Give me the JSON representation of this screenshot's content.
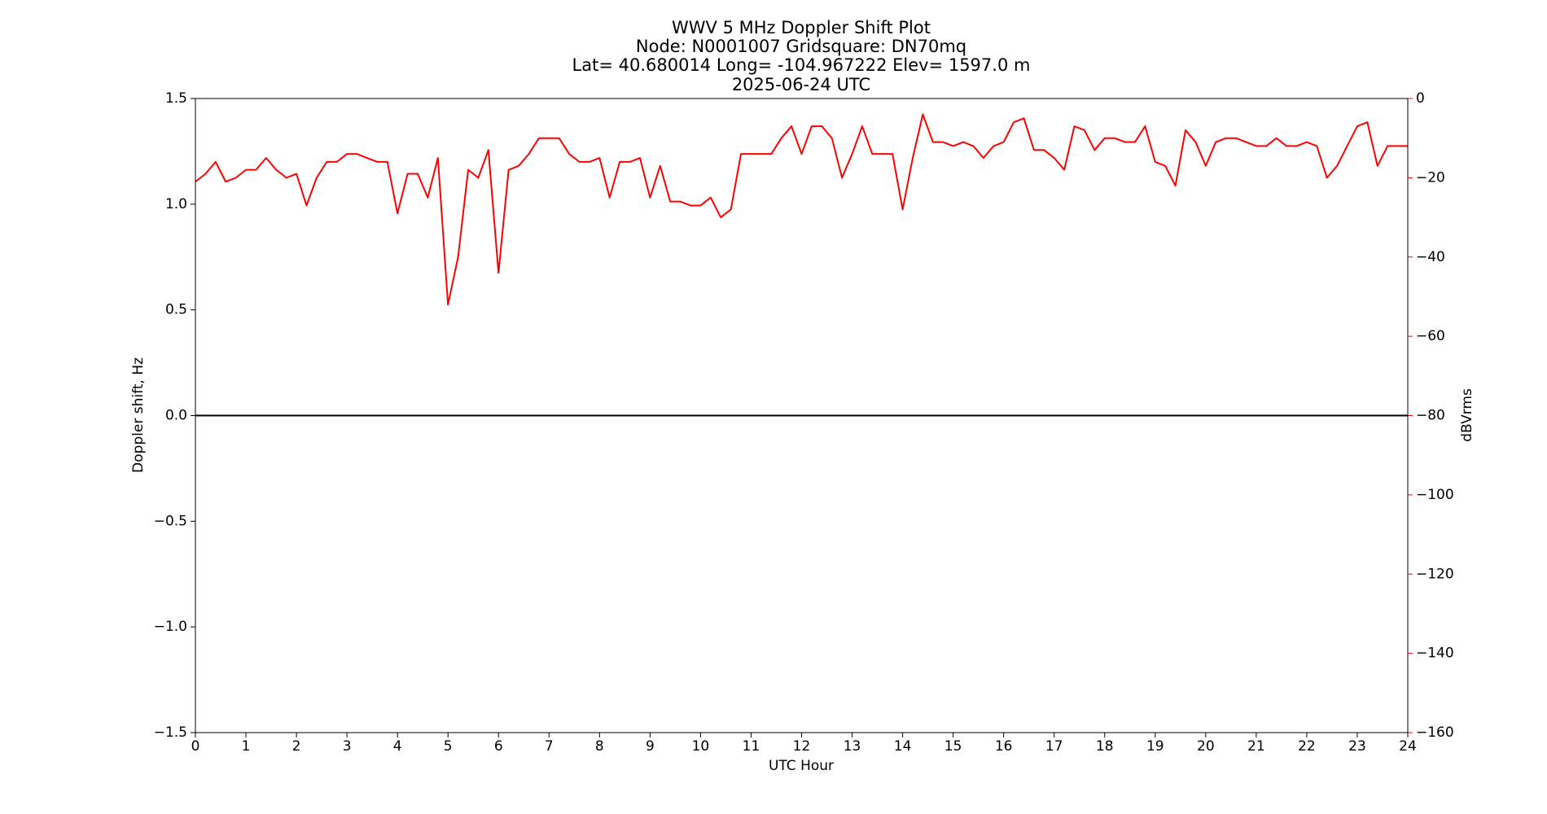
{
  "chart_data": {
    "type": "line",
    "title": [
      "WWV 5 MHz Doppler Shift Plot",
      "Node:  N0001007     Gridsquare:  DN70mq",
      "Lat= 40.680014    Long= -104.967222    Elev= 1597.0 m",
      "2025-06-24  UTC"
    ],
    "xlabel": "UTC Hour",
    "ylabel": "Doppler shift, Hz",
    "y2label": "dBVrms",
    "xlim": [
      0,
      24
    ],
    "xticks": [
      0,
      1,
      2,
      3,
      4,
      5,
      6,
      7,
      8,
      9,
      10,
      11,
      12,
      13,
      14,
      15,
      16,
      17,
      18,
      19,
      20,
      21,
      22,
      23,
      24
    ],
    "ylim": [
      -1.5,
      1.5
    ],
    "yticks": [
      {
        "value": -1.5,
        "label": "−1.5"
      },
      {
        "value": -1.0,
        "label": "−1.0"
      },
      {
        "value": -0.5,
        "label": "−0.5"
      },
      {
        "value": 0.0,
        "label": "0.0"
      },
      0.5,
      {
        "value": 1.0,
        "label": "1.0"
      },
      1.5
    ],
    "y2lim": [
      -160,
      0
    ],
    "y2ticks": [
      {
        "value": -160,
        "label": "−160"
      },
      {
        "value": -140,
        "label": "−140"
      },
      {
        "value": -120,
        "label": "−120"
      },
      {
        "value": -100,
        "label": "−100"
      },
      {
        "value": -80,
        "label": "−80"
      },
      {
        "value": -60,
        "label": "−60"
      },
      {
        "value": -40,
        "label": "−40"
      },
      {
        "value": -20,
        "label": "−20"
      },
      0
    ],
    "y2color": "#ff0000",
    "x": [
      0,
      0.2,
      0.4,
      0.6,
      0.8,
      1,
      1.2,
      1.4,
      1.6,
      1.8,
      2,
      2.2,
      2.4,
      2.6,
      2.8,
      3,
      3.2,
      3.4,
      3.6,
      3.8,
      4,
      4.2,
      4.4,
      4.6,
      4.8,
      5,
      5.2,
      5.4,
      5.6,
      5.8,
      6,
      6.2,
      6.4,
      6.6,
      6.8,
      7,
      7.2,
      7.4,
      7.6,
      7.8,
      8,
      8.2,
      8.4,
      8.6,
      8.8,
      9,
      9.2,
      9.4,
      9.6,
      9.8,
      10,
      10.2,
      10.4,
      10.6,
      10.8,
      11,
      11.2,
      11.4,
      11.6,
      11.8,
      12,
      12.2,
      12.4,
      12.6,
      12.8,
      13,
      13.2,
      13.4,
      13.6,
      13.8,
      14,
      14.2,
      14.4,
      14.6,
      14.8,
      15,
      15.2,
      15.4,
      15.6,
      15.8,
      16,
      16.2,
      16.4,
      16.6,
      16.8,
      17,
      17.2,
      17.4,
      17.6,
      17.8,
      18,
      18.2,
      18.4,
      18.6,
      18.8,
      19,
      19.2,
      19.4,
      19.6,
      19.8,
      20,
      20.2,
      20.4,
      20.6,
      20.8,
      21,
      21.2,
      21.4,
      21.6,
      21.8,
      22,
      22.2,
      22.4,
      22.6,
      22.8,
      23,
      23.2,
      23.4,
      23.6,
      23.8,
      24
    ],
    "series": [
      {
        "color": "#000000",
        "values": [
          0,
          0,
          0,
          0,
          0,
          0,
          0,
          0,
          0,
          0,
          0,
          0,
          0,
          0,
          0,
          0,
          0,
          0,
          0,
          0,
          0,
          0,
          0,
          0,
          0,
          0,
          0,
          0,
          0,
          0,
          0,
          0,
          0,
          0,
          0,
          0,
          0,
          0,
          0,
          0,
          0,
          0,
          0,
          0,
          0,
          0,
          0,
          0,
          0,
          0,
          0,
          0,
          0,
          0,
          0,
          0,
          0,
          0,
          0,
          0,
          0,
          0,
          0,
          0,
          0,
          0,
          0,
          0,
          0,
          0,
          0,
          0,
          0,
          0,
          0,
          0,
          0,
          0,
          0,
          0,
          0,
          0,
          0,
          0,
          0,
          0,
          0,
          0,
          0,
          0,
          0,
          0,
          0,
          0,
          0,
          0,
          0,
          0,
          0,
          0,
          0,
          0,
          0,
          0,
          0,
          0,
          0,
          0,
          0,
          0,
          0,
          0,
          0,
          0,
          0,
          0,
          0,
          0,
          0,
          0,
          0
        ]
      },
      {
        "color": "#ff0000",
        "axis": "y2",
        "values": [
          -21,
          -19,
          -16,
          -21,
          -20,
          -18,
          -18,
          -15,
          -18,
          -20,
          -19,
          -27,
          -20,
          -16,
          -16,
          -14,
          -14,
          -15,
          -16,
          -16,
          -29,
          -19,
          -19,
          -25,
          -15,
          -52,
          -40,
          -18,
          -20,
          -13,
          -44,
          -18,
          -17,
          -14,
          -10,
          -10,
          -10,
          -14,
          -16,
          -16,
          -15,
          -25,
          -16,
          -16,
          -15,
          -25,
          -17,
          -26,
          -26,
          -27,
          -27,
          -25,
          -30,
          -28,
          -14,
          -14,
          -14,
          -14,
          -10,
          -7,
          -14,
          -7,
          -7,
          -10,
          -20,
          -14,
          -7,
          -14,
          -14,
          -14,
          -28,
          -15,
          -4,
          -11,
          -11,
          -12,
          -11,
          -12,
          -15,
          -12,
          -11,
          -6,
          -5,
          -13,
          -13,
          -15,
          -18,
          -7,
          -8,
          -13,
          -10,
          -10,
          -11,
          -11,
          -7,
          -16,
          -17,
          -22,
          -8,
          -11,
          -17,
          -11,
          -10,
          -10,
          -11,
          -12,
          -12,
          -10,
          -12,
          -12,
          -11,
          -12,
          -20,
          -17,
          -12,
          -7,
          -6,
          -17,
          -12,
          -12,
          -12
        ]
      }
    ]
  }
}
